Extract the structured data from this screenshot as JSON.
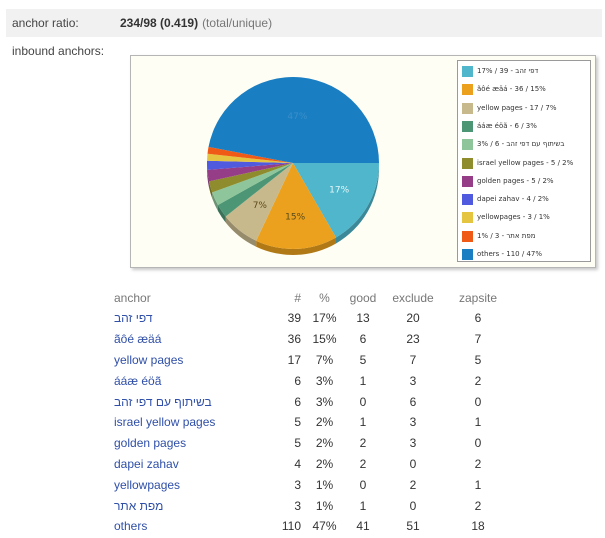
{
  "ratio": {
    "label": "anchor ratio:",
    "value": "234/98 (0.419)",
    "note": "(total/unique)"
  },
  "inbound_label": "inbound anchors:",
  "chart_data": {
    "type": "pie",
    "slices": [
      {
        "label": "דפי זהב",
        "legend": "17% / 39 - דפי זהב",
        "value": 39,
        "percent": 17,
        "color": "#4fb6cb"
      },
      {
        "label": "ãôé æäá",
        "legend": "ãôé æäá - 36 / 15%",
        "value": 36,
        "percent": 15,
        "color": "#eba11d"
      },
      {
        "label": "yellow pages",
        "legend": "yellow pages - 17 / 7%",
        "value": 17,
        "percent": 7,
        "color": "#c8b98d"
      },
      {
        "label": "ááæ éöã",
        "legend": "ááæ éöã - 6 / 3%",
        "value": 6,
        "percent": 3,
        "color": "#4c9676"
      },
      {
        "label": "בשיתוף עם דפי זהב",
        "legend": "3% / 6 - בשיתוף עם דפי זהב",
        "value": 6,
        "percent": 3,
        "color": "#8fc59a"
      },
      {
        "label": "israel yellow pages",
        "legend": "israel yellow pages - 5 / 2%",
        "value": 5,
        "percent": 2,
        "color": "#8e8c2d"
      },
      {
        "label": "golden pages",
        "legend": "golden pages - 5 / 2%",
        "value": 5,
        "percent": 2,
        "color": "#953d86"
      },
      {
        "label": "dapei zahav",
        "legend": "dapei zahav - 4 / 2%",
        "value": 4,
        "percent": 2,
        "color": "#4f5ade"
      },
      {
        "label": "yellowpages",
        "legend": "yellowpages - 3 / 1%",
        "value": 3,
        "percent": 1,
        "color": "#e5c540"
      },
      {
        "label": "מפת אתר",
        "legend": "1% / 3 - מפת אתר",
        "value": 3,
        "percent": 1,
        "color": "#f05a17"
      },
      {
        "label": "others",
        "legend": "others - 110 / 47%",
        "value": 110,
        "percent": 47,
        "color": "#1a7ec2"
      }
    ],
    "slice_labels": [
      "17%",
      "15%",
      "7%",
      "47%"
    ]
  },
  "table": {
    "columns": [
      "anchor",
      "#",
      "%",
      "good",
      "exclude",
      "zapsite"
    ],
    "rows": [
      {
        "anchor": "דפי זהב",
        "count": "39",
        "pct": "17%",
        "good": "13",
        "exclude": "20",
        "zapsite": "6"
      },
      {
        "anchor": "ãôé æäá",
        "count": "36",
        "pct": "15%",
        "good": "6",
        "exclude": "23",
        "zapsite": "7"
      },
      {
        "anchor": "yellow pages",
        "count": "17",
        "pct": "7%",
        "good": "5",
        "exclude": "7",
        "zapsite": "5"
      },
      {
        "anchor": "ááæ éöã",
        "count": "6",
        "pct": "3%",
        "good": "1",
        "exclude": "3",
        "zapsite": "2"
      },
      {
        "anchor": "בשיתוף עם דפי זהב",
        "count": "6",
        "pct": "3%",
        "good": "0",
        "exclude": "6",
        "zapsite": "0"
      },
      {
        "anchor": "israel yellow pages",
        "count": "5",
        "pct": "2%",
        "good": "1",
        "exclude": "3",
        "zapsite": "1"
      },
      {
        "anchor": "golden pages",
        "count": "5",
        "pct": "2%",
        "good": "2",
        "exclude": "3",
        "zapsite": "0"
      },
      {
        "anchor": "dapei zahav",
        "count": "4",
        "pct": "2%",
        "good": "2",
        "exclude": "0",
        "zapsite": "2"
      },
      {
        "anchor": "yellowpages",
        "count": "3",
        "pct": "1%",
        "good": "0",
        "exclude": "2",
        "zapsite": "1"
      },
      {
        "anchor": "מפת אתר",
        "count": "3",
        "pct": "1%",
        "good": "1",
        "exclude": "0",
        "zapsite": "2"
      },
      {
        "anchor": "others",
        "count": "110",
        "pct": "47%",
        "good": "41",
        "exclude": "51",
        "zapsite": "18"
      }
    ]
  }
}
